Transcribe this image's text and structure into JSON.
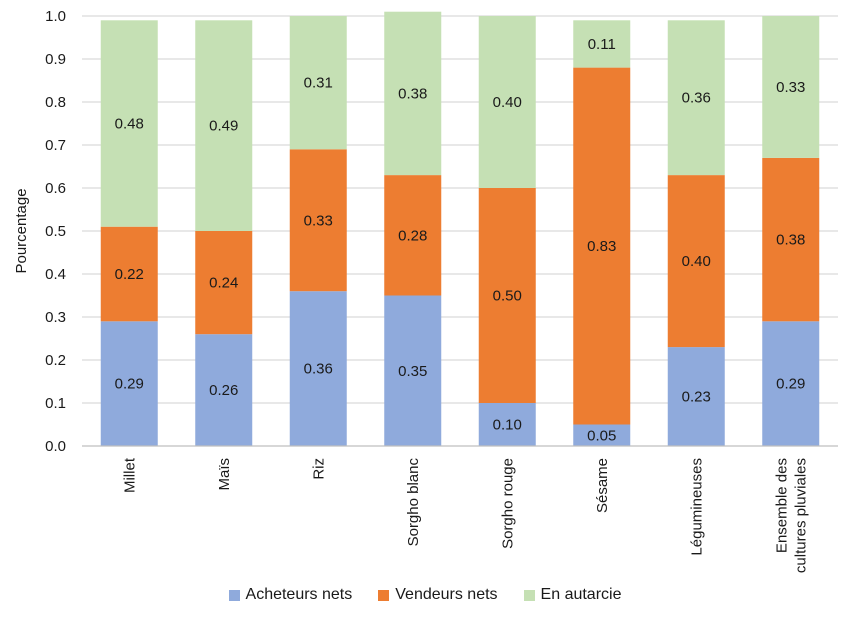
{
  "chart_data": {
    "type": "bar",
    "stacked": true,
    "title": "",
    "xlabel": "",
    "ylabel": "Pourcentage",
    "ylim": [
      0,
      1.0
    ],
    "yticks": [
      "0.0",
      "0.1",
      "0.2",
      "0.3",
      "0.4",
      "0.5",
      "0.6",
      "0.7",
      "0.8",
      "0.9",
      "1.0"
    ],
    "grid": true,
    "legend_position": "bottom",
    "categories": [
      [
        "Millet"
      ],
      [
        "Maïs"
      ],
      [
        "Riz"
      ],
      [
        "Sorgho blanc"
      ],
      [
        "Sorgho rouge"
      ],
      [
        "Sésame"
      ],
      [
        "Légumineuses"
      ],
      [
        "Ensemble des",
        "cultures pluviales"
      ]
    ],
    "series": [
      {
        "name": "Acheteurs nets",
        "color": "#8FAADC",
        "values": [
          0.29,
          0.26,
          0.36,
          0.35,
          0.1,
          0.05,
          0.23,
          0.29
        ],
        "labels": [
          "0.29",
          "0.26",
          "0.36",
          "0.35",
          "0.10",
          "0.05",
          "0.23",
          "0.29"
        ]
      },
      {
        "name": "Vendeurs nets",
        "color": "#ED7D31",
        "values": [
          0.22,
          0.24,
          0.33,
          0.28,
          0.5,
          0.83,
          0.4,
          0.38
        ],
        "labels": [
          "0.22",
          "0.24",
          "0.33",
          "0.28",
          "0.50",
          "0.83",
          "0.40",
          "0.38"
        ]
      },
      {
        "name": "En autarcie",
        "color": "#C5E0B4",
        "values": [
          0.48,
          0.49,
          0.31,
          0.38,
          0.4,
          0.11,
          0.36,
          0.33
        ],
        "labels": [
          "0.48",
          "0.49",
          "0.31",
          "0.38",
          "0.40",
          "0.11",
          "0.36",
          "0.33"
        ]
      }
    ]
  }
}
